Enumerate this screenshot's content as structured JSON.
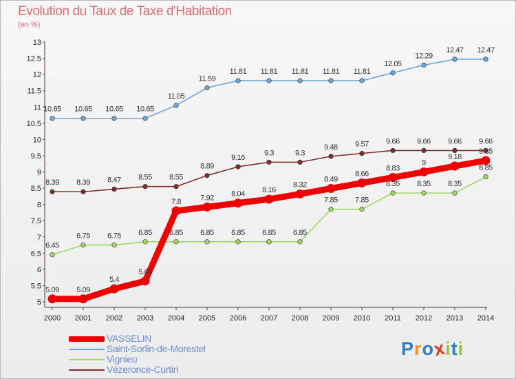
{
  "title": "Evolution du Taux de Taxe d'Habitation",
  "subtitle": "(en %)",
  "logo": {
    "text": "Proxiti",
    "colors": [
      "#2f7fc1",
      "#f29a1f",
      "#2f7fc1",
      "#e8352c",
      "#8fc63f",
      "#2f7fc1",
      "#8fc63f"
    ]
  },
  "chart_data": {
    "type": "line",
    "x": [
      2000,
      2001,
      2002,
      2003,
      2004,
      2005,
      2006,
      2007,
      2008,
      2009,
      2010,
      2011,
      2012,
      2013,
      2014
    ],
    "ylim": [
      5,
      13
    ],
    "yticks": [
      5,
      5.5,
      6,
      6.5,
      7,
      7.5,
      8,
      8.5,
      9,
      9.5,
      10,
      10.5,
      11,
      11.5,
      12,
      12.5,
      13
    ],
    "grid": false,
    "legend": "bottom-left",
    "series": [
      {
        "name": "VASSELIN",
        "color": "#ee0000",
        "emphasis": true,
        "values": [
          5.09,
          5.09,
          5.4,
          5.64,
          7.8,
          7.92,
          8.04,
          8.16,
          8.32,
          8.49,
          8.66,
          8.83,
          9,
          9.18,
          9.35
        ],
        "labels": [
          "5.09",
          "5.09",
          "5.4",
          "5.64",
          "7.8",
          "7.92",
          "8.04",
          "8.16",
          "8.32",
          "8.49",
          "8.66",
          "8.83",
          "9",
          "9.18",
          "9.35"
        ]
      },
      {
        "name": "Saint-Sorlin-de-Morestel",
        "color": "#6ea6d8",
        "values": [
          10.65,
          10.65,
          10.65,
          10.65,
          11.05,
          11.59,
          11.81,
          11.81,
          11.81,
          11.81,
          11.81,
          12.05,
          12.29,
          12.47,
          12.47
        ],
        "labels": [
          "10.65",
          "10.65",
          "10.65",
          "10.65",
          "11.05",
          "11.59",
          "11.81",
          "11.81",
          "11.81",
          "11.81",
          "11.81",
          "12.05",
          "12.29",
          "12.47",
          "12.47"
        ]
      },
      {
        "name": "Vignieu",
        "color": "#9ed86a",
        "values": [
          6.45,
          6.75,
          6.75,
          6.85,
          6.85,
          6.85,
          6.85,
          6.85,
          6.85,
          7.85,
          7.85,
          8.35,
          8.35,
          8.35,
          8.85
        ],
        "labels": [
          "6.45",
          "6.75",
          "6.75",
          "6.85",
          "6.85",
          "6.85",
          "6.85",
          "6.85",
          "6.85",
          "7.85",
          "7.85",
          "8.35",
          "8.35",
          "8.35",
          "8.85"
        ]
      },
      {
        "name": "Vézeronce-Curtin",
        "color": "#7b2e2e",
        "values": [
          8.39,
          8.39,
          8.47,
          8.55,
          8.55,
          8.89,
          9.16,
          9.3,
          9.3,
          9.48,
          9.57,
          9.66,
          9.66,
          9.66,
          9.66
        ],
        "labels": [
          "8.39",
          "8.39",
          "8.47",
          "8.55",
          "8.55",
          "8.89",
          "9.16",
          "9.3",
          "9.3",
          "9.48",
          "9.57",
          "9.66",
          "9.66",
          "9.66",
          "9.66"
        ]
      }
    ]
  }
}
